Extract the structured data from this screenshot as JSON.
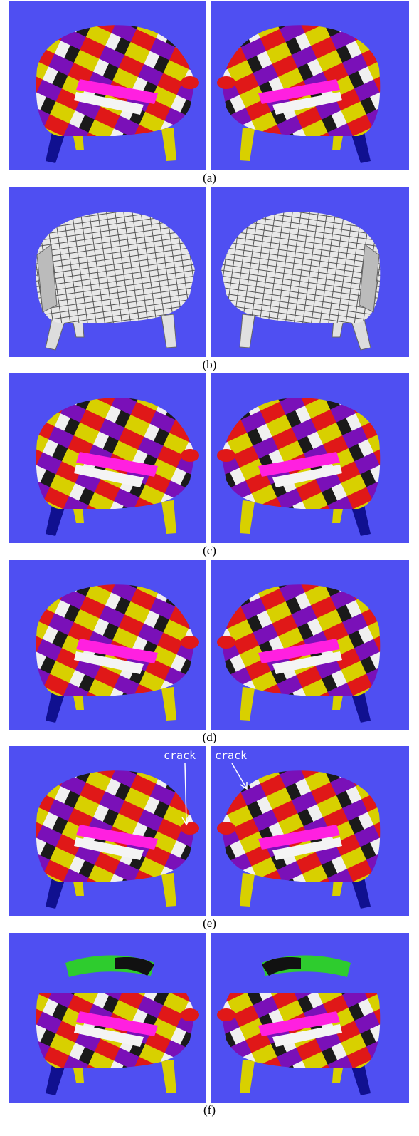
{
  "panels": [
    {
      "label": "(a)",
      "style": "color"
    },
    {
      "label": "(b)",
      "style": "mesh"
    },
    {
      "label": "(c)",
      "style": "color"
    },
    {
      "label": "(d)",
      "style": "color"
    },
    {
      "label": "(e)",
      "style": "color"
    },
    {
      "label": "(f)",
      "style": "broken"
    }
  ],
  "annotations": [
    {
      "text": "crack"
    },
    {
      "text": "crack"
    }
  ]
}
